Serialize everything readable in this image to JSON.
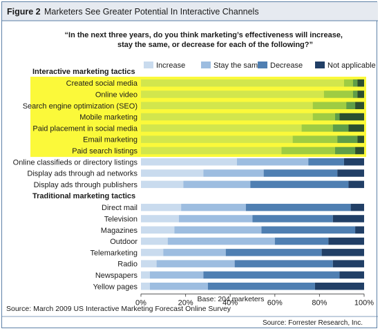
{
  "figure_label": "Figure 2",
  "figure_title": "Marketers See Greater Potential In Interactive Channels",
  "question_line1": "“In the next three years, do you think marketing’s effectiveness will increase,",
  "question_line2": "stay the same, or decrease for each of the following?”",
  "base_note": "Base: 204 marketers",
  "survey_source": "Source: March 2009 US Interactive Marketing Forecast Online Survey",
  "credit": "Source: Forrester Research, Inc.",
  "colors": {
    "increase": "#c9dbee",
    "stay": "#9dbde0",
    "decrease": "#4f7fb2",
    "not_applicable": "#213f66",
    "highlight": "#fbf93a",
    "highlight_increase": "#d2e64d",
    "highlight_stay": "#9fcc43",
    "highlight_decrease": "#5f9e48",
    "highlight_not_applicable": "#2b4f30",
    "title_bar": "#e6eaf0",
    "border": "#5b7fa6"
  },
  "chart_data": {
    "type": "bar",
    "orientation": "horizontal",
    "stacked": true,
    "series_names": [
      "Increase",
      "Stay the same",
      "Decrease",
      "Not applicable"
    ],
    "groups": [
      {
        "title": "Interactive marketing tactics",
        "highlighted_rows": 7,
        "rows": [
          {
            "label": "Created social media",
            "values": [
              91,
              4,
              2,
              3
            ]
          },
          {
            "label": "Online video",
            "values": [
              82,
              13,
              2,
              3
            ]
          },
          {
            "label": "Search engine optimization (SEO)",
            "values": [
              77,
              15,
              4,
              4
            ]
          },
          {
            "label": "Mobile marketing",
            "values": [
              77,
              10,
              2,
              11
            ]
          },
          {
            "label": "Paid placement in social media",
            "values": [
              72,
              14,
              7,
              7
            ]
          },
          {
            "label": "Email marketing",
            "values": [
              68,
              20,
              9,
              3
            ]
          },
          {
            "label": "Paid search listings",
            "values": [
              63,
              24,
              9,
              4
            ]
          },
          {
            "label": "Online classifieds or directory listings",
            "values": [
              43,
              32,
              16,
              9
            ]
          },
          {
            "label": "Display ads through ad networks",
            "values": [
              28,
              27,
              33,
              12
            ]
          },
          {
            "label": "Display ads through publishers",
            "values": [
              19,
              30,
              44,
              7
            ]
          }
        ]
      },
      {
        "title": "Traditional marketing tactics",
        "rows": [
          {
            "label": "Direct mail",
            "values": [
              18,
              29,
              47,
              6
            ]
          },
          {
            "label": "Television",
            "values": [
              17,
              33,
              36,
              14
            ]
          },
          {
            "label": "Magazines",
            "values": [
              15,
              39,
              42,
              4
            ]
          },
          {
            "label": "Outdoor",
            "values": [
              12,
              48,
              24,
              16
            ]
          },
          {
            "label": "Telemarketing",
            "values": [
              10,
              28,
              43,
              19
            ]
          },
          {
            "label": "Radio",
            "values": [
              7,
              35,
              44,
              14
            ]
          },
          {
            "label": "Newspapers",
            "values": [
              4,
              24,
              61,
              11
            ]
          },
          {
            "label": "Yellow pages",
            "values": [
              4,
              26,
              48,
              22
            ]
          }
        ]
      }
    ],
    "x_ticks": [
      "0%",
      "20%",
      "40%",
      "60%",
      "80%",
      "100%"
    ],
    "xlim": [
      0,
      100
    ],
    "legend_position": "top-right"
  }
}
